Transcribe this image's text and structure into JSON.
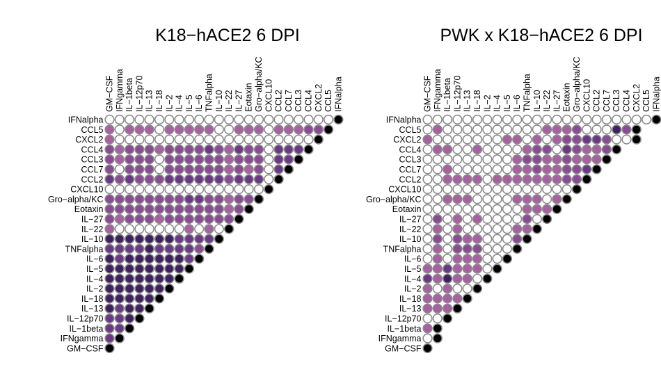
{
  "chart_data": [
    {
      "type": "heatmap",
      "subtype": "correlation-triangle",
      "title": "K18−hACE2 6 DPI",
      "column_labels": [
        "GM−CSF",
        "IFNgamma",
        "IL−1beta",
        "IL−12p70",
        "IL−13",
        "IL−18",
        "IL−2",
        "IL−4",
        "IL−5",
        "IL−6",
        "TNFalpha",
        "IL−10",
        "IL−22",
        "IL−27",
        "Eotaxin",
        "Gro−alpha/KC",
        "CXCL10",
        "CCL2",
        "CCL7",
        "CCL3",
        "CCL4",
        "CXCL2",
        "CCL5",
        "IFNalpha"
      ],
      "row_labels": [
        "IFNalpha",
        "CCL5",
        "CXCL2",
        "CCL4",
        "CCL3",
        "CCL7",
        "CCL2",
        "CXCL10",
        "Gro−alpha/KC",
        "Eotaxin",
        "IL−27",
        "IL−22",
        "IL−10",
        "TNFalpha",
        "IL−6",
        "IL−5",
        "IL−4",
        "IL−2",
        "IL−18",
        "IL−13",
        "IL−12p70",
        "IL−1beta",
        "IFNgamma",
        "GM−CSF"
      ],
      "value_scale": "0 = not significant (white), 1–4 = light to dark purple, 5 = black (self)",
      "colors": [
        "#ffffff",
        "#a960a3",
        "#8b4a95",
        "#6a3886",
        "#3f2060",
        "#000000"
      ],
      "rows": [
        [
          0,
          0,
          0,
          0,
          0,
          0,
          0,
          0,
          0,
          0,
          0,
          0,
          0,
          0,
          0,
          0,
          0,
          0,
          0,
          0,
          0,
          0,
          0,
          5
        ],
        [
          1,
          0,
          1,
          1,
          1,
          0,
          1,
          1,
          1,
          1,
          1,
          0,
          0,
          1,
          1,
          1,
          0,
          1,
          1,
          1,
          2,
          2,
          5
        ],
        [
          1,
          0,
          0,
          0,
          0,
          0,
          0,
          0,
          0,
          0,
          0,
          0,
          0,
          0,
          0,
          0,
          0,
          0,
          0,
          0,
          0,
          5
        ],
        [
          2,
          1,
          2,
          2,
          2,
          1,
          2,
          2,
          2,
          2,
          3,
          2,
          1,
          3,
          2,
          2,
          0,
          3,
          3,
          3,
          5
        ],
        [
          2,
          1,
          2,
          2,
          2,
          0,
          2,
          2,
          2,
          2,
          2,
          2,
          1,
          2,
          2,
          2,
          0,
          3,
          3,
          5
        ],
        [
          2,
          0,
          2,
          2,
          2,
          0,
          2,
          2,
          2,
          2,
          2,
          2,
          1,
          2,
          1,
          2,
          0,
          3,
          5
        ],
        [
          3,
          2,
          3,
          2,
          2,
          2,
          3,
          3,
          3,
          3,
          3,
          3,
          2,
          3,
          3,
          3,
          0,
          5
        ],
        [
          0,
          0,
          0,
          0,
          0,
          0,
          0,
          0,
          0,
          0,
          0,
          0,
          0,
          0,
          0,
          0,
          5
        ],
        [
          2,
          2,
          2,
          2,
          2,
          2,
          2,
          2,
          3,
          3,
          2,
          2,
          1,
          2,
          2,
          5
        ],
        [
          2,
          2,
          2,
          2,
          2,
          2,
          2,
          2,
          2,
          2,
          2,
          2,
          1,
          2,
          5
        ],
        [
          2,
          1,
          2,
          2,
          2,
          1,
          2,
          2,
          2,
          2,
          2,
          2,
          2,
          5
        ],
        [
          1,
          0,
          0,
          0,
          0,
          0,
          0,
          0,
          1,
          0,
          1,
          0,
          5
        ],
        [
          4,
          4,
          4,
          4,
          4,
          4,
          4,
          3,
          3,
          3,
          3,
          5
        ],
        [
          3,
          3,
          3,
          3,
          4,
          3,
          3,
          3,
          3,
          2,
          5
        ],
        [
          4,
          3,
          4,
          4,
          4,
          4,
          4,
          4,
          3,
          5
        ],
        [
          4,
          4,
          4,
          4,
          4,
          4,
          4,
          4,
          5
        ],
        [
          4,
          4,
          4,
          4,
          4,
          4,
          4,
          5
        ],
        [
          4,
          4,
          4,
          4,
          4,
          4,
          5
        ],
        [
          4,
          4,
          4,
          4,
          4,
          5
        ],
        [
          4,
          3,
          4,
          4,
          5
        ],
        [
          3,
          3,
          4,
          5
        ],
        [
          3,
          3,
          5
        ],
        [
          3,
          5
        ],
        [
          5
        ]
      ]
    },
    {
      "type": "heatmap",
      "subtype": "correlation-triangle",
      "title": "PWK x K18−hACE2 6 DPI",
      "column_labels": [
        "GM−CSF",
        "IFNgamma",
        "IL−1beta",
        "IL−12p70",
        "IL−13",
        "IL−18",
        "IL−2",
        "IL−4",
        "IL−5",
        "IL−6",
        "TNFalpha",
        "IL−10",
        "IL−22",
        "IL−27",
        "Eotaxin",
        "Gro−alpha/KC",
        "CXCL10",
        "CCL2",
        "CCL7",
        "CCL3",
        "CCL4",
        "CXCL2",
        "CCL5",
        "IFNalpha"
      ],
      "row_labels": [
        "IFNalpha",
        "CCL5",
        "CXCL2",
        "CCL4",
        "CCL3",
        "CCL7",
        "CCL2",
        "CXCL10",
        "Gro−alpha/KC",
        "Eotaxin",
        "IL−27",
        "IL−22",
        "IL−10",
        "TNFalpha",
        "IL−6",
        "IL−5",
        "IL−4",
        "IL−2",
        "IL−18",
        "IL−13",
        "IL−12p70",
        "IL−1beta",
        "IFNgamma",
        "GM−CSF"
      ],
      "value_scale": "0 = not significant (white), 1–4 = light to dark purple, 5 = black (self)",
      "colors": [
        "#ffffff",
        "#a960a3",
        "#8b4a95",
        "#6a3886",
        "#3f2060",
        "#000000"
      ],
      "rows": [
        [
          0,
          0,
          0,
          0,
          0,
          0,
          0,
          0,
          0,
          0,
          0,
          0,
          0,
          0,
          0,
          0,
          0,
          0,
          0,
          0,
          0,
          0,
          0,
          5
        ],
        [
          0,
          1,
          0,
          0,
          0,
          0,
          0,
          0,
          0,
          0,
          0,
          0,
          1,
          1,
          1,
          2,
          0,
          0,
          0,
          4,
          2,
          5
        ],
        [
          1,
          0,
          0,
          0,
          0,
          0,
          0,
          0,
          1,
          1,
          0,
          1,
          0,
          1,
          2,
          2,
          3,
          3,
          2,
          0,
          0,
          5
        ],
        [
          0,
          1,
          1,
          0,
          0,
          1,
          0,
          0,
          0,
          0,
          1,
          2,
          2,
          0,
          3,
          2,
          1,
          1,
          2,
          5
        ],
        [
          0,
          0,
          0,
          0,
          0,
          0,
          0,
          0,
          0,
          1,
          2,
          2,
          1,
          1,
          2,
          1,
          1,
          1,
          5
        ],
        [
          0,
          0,
          1,
          0,
          0,
          0,
          0,
          0,
          0,
          1,
          1,
          2,
          1,
          1,
          2,
          2,
          3,
          5
        ],
        [
          0,
          0,
          1,
          1,
          1,
          1,
          0,
          1,
          1,
          1,
          1,
          1,
          1,
          1,
          2,
          2,
          5
        ],
        [
          0,
          0,
          0,
          0,
          0,
          0,
          0,
          0,
          0,
          0,
          0,
          0,
          0,
          0,
          0,
          5
        ],
        [
          0,
          0,
          1,
          1,
          1,
          0,
          0,
          0,
          0,
          1,
          1,
          1,
          0,
          1,
          5
        ],
        [
          0,
          0,
          0,
          0,
          0,
          0,
          0,
          0,
          0,
          0,
          1,
          1,
          1,
          5
        ],
        [
          0,
          2,
          0,
          1,
          0,
          1,
          0,
          0,
          0,
          0,
          2,
          0,
          5
        ],
        [
          0,
          1,
          0,
          1,
          0,
          0,
          0,
          0,
          0,
          1,
          1,
          5
        ],
        [
          0,
          2,
          0,
          2,
          1,
          1,
          0,
          0,
          0,
          2,
          5
        ],
        [
          0,
          1,
          0,
          2,
          2,
          2,
          0,
          0,
          0,
          5
        ],
        [
          0,
          1,
          0,
          1,
          1,
          1,
          0,
          0,
          5
        ],
        [
          1,
          1,
          3,
          1,
          1,
          1,
          0,
          5
        ],
        [
          3,
          1,
          4,
          1,
          1,
          0,
          5
        ],
        [
          1,
          0,
          1,
          0,
          0,
          5
        ],
        [
          1,
          1,
          1,
          1,
          5
        ],
        [
          1,
          1,
          1,
          5
        ],
        [
          0,
          0,
          5
        ],
        [
          1,
          5
        ],
        [
          0,
          5
        ],
        [
          5
        ]
      ]
    }
  ]
}
